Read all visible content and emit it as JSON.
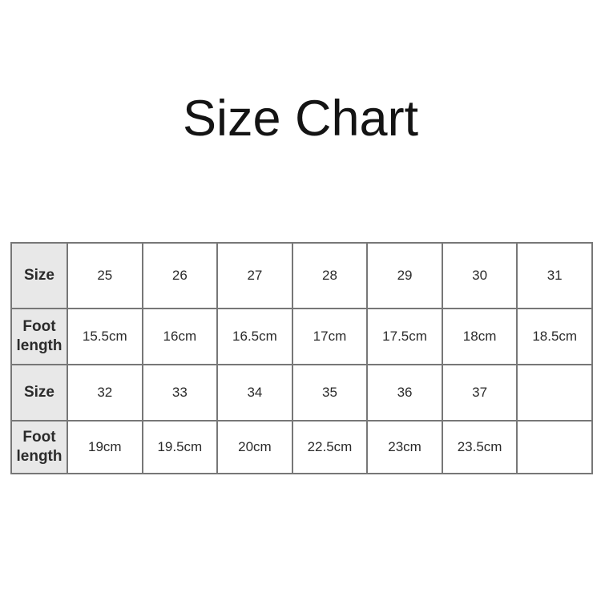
{
  "title": "Size Chart",
  "table": {
    "rows": [
      {
        "header": "Size",
        "cells": [
          "25",
          "26",
          "27",
          "28",
          "29",
          "30",
          "31"
        ]
      },
      {
        "header": "Foot length",
        "cells": [
          "15.5cm",
          "16cm",
          "16.5cm",
          "17cm",
          "17.5cm",
          "18cm",
          "18.5cm"
        ]
      },
      {
        "header": "Size",
        "cells": [
          "32",
          "33",
          "34",
          "35",
          "36",
          "37",
          ""
        ]
      },
      {
        "header": "Foot length",
        "cells": [
          "19cm",
          "19.5cm",
          "20cm",
          "22.5cm",
          "23cm",
          "23.5cm",
          ""
        ]
      }
    ]
  },
  "colors": {
    "title_text": "#141414",
    "text": "#2b2b2b",
    "border": "#777777",
    "header_bg": "#e8e8e8",
    "cell_bg": "#ffffff"
  }
}
